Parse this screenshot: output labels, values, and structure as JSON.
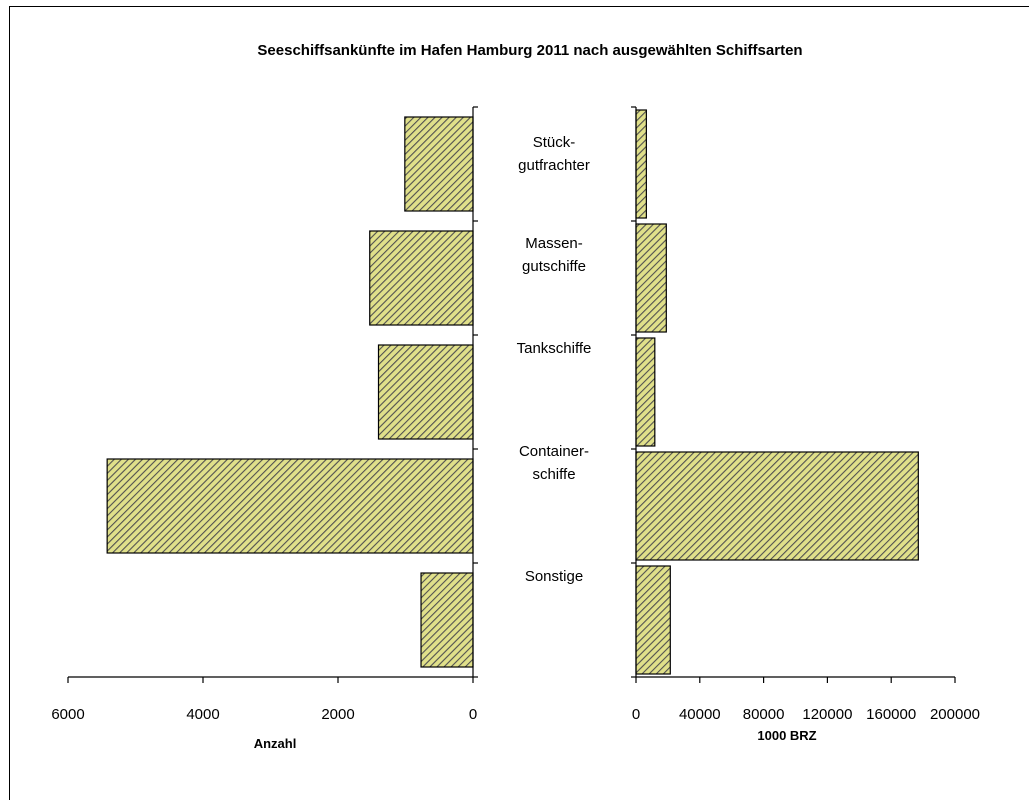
{
  "chart_data": {
    "type": "bar",
    "orientation": "horizontal",
    "title": "Seeschiffsankünfte im Hafen Hamburg 2011 nach ausgewählten Schiffsarten",
    "categories": [
      "Stück-\ngutfrachter",
      "Massen-\ngutschiffe",
      "Tankschiffe",
      "Container-\nschiffe",
      "Sonstige"
    ],
    "panels": [
      {
        "xlabel": "Anzahl",
        "direction": "reversed",
        "xlim": [
          0,
          6000
        ],
        "ticks": [
          "6000",
          "4000",
          "2000",
          "0"
        ],
        "tick_values": [
          6000,
          4000,
          2000,
          0
        ],
        "values": [
          1010,
          1530,
          1400,
          5420,
          770
        ]
      },
      {
        "xlabel": "1000 BRZ",
        "direction": "normal",
        "xlim": [
          0,
          200000
        ],
        "ticks": [
          "0",
          "40000",
          "80000",
          "120000",
          "160000",
          "200000"
        ],
        "tick_values": [
          0,
          40000,
          80000,
          120000,
          160000,
          200000
        ],
        "values": [
          6500,
          19000,
          11800,
          177000,
          21500
        ]
      }
    ],
    "bar_color": "#e0e08a",
    "hatch_color": "#505050"
  }
}
